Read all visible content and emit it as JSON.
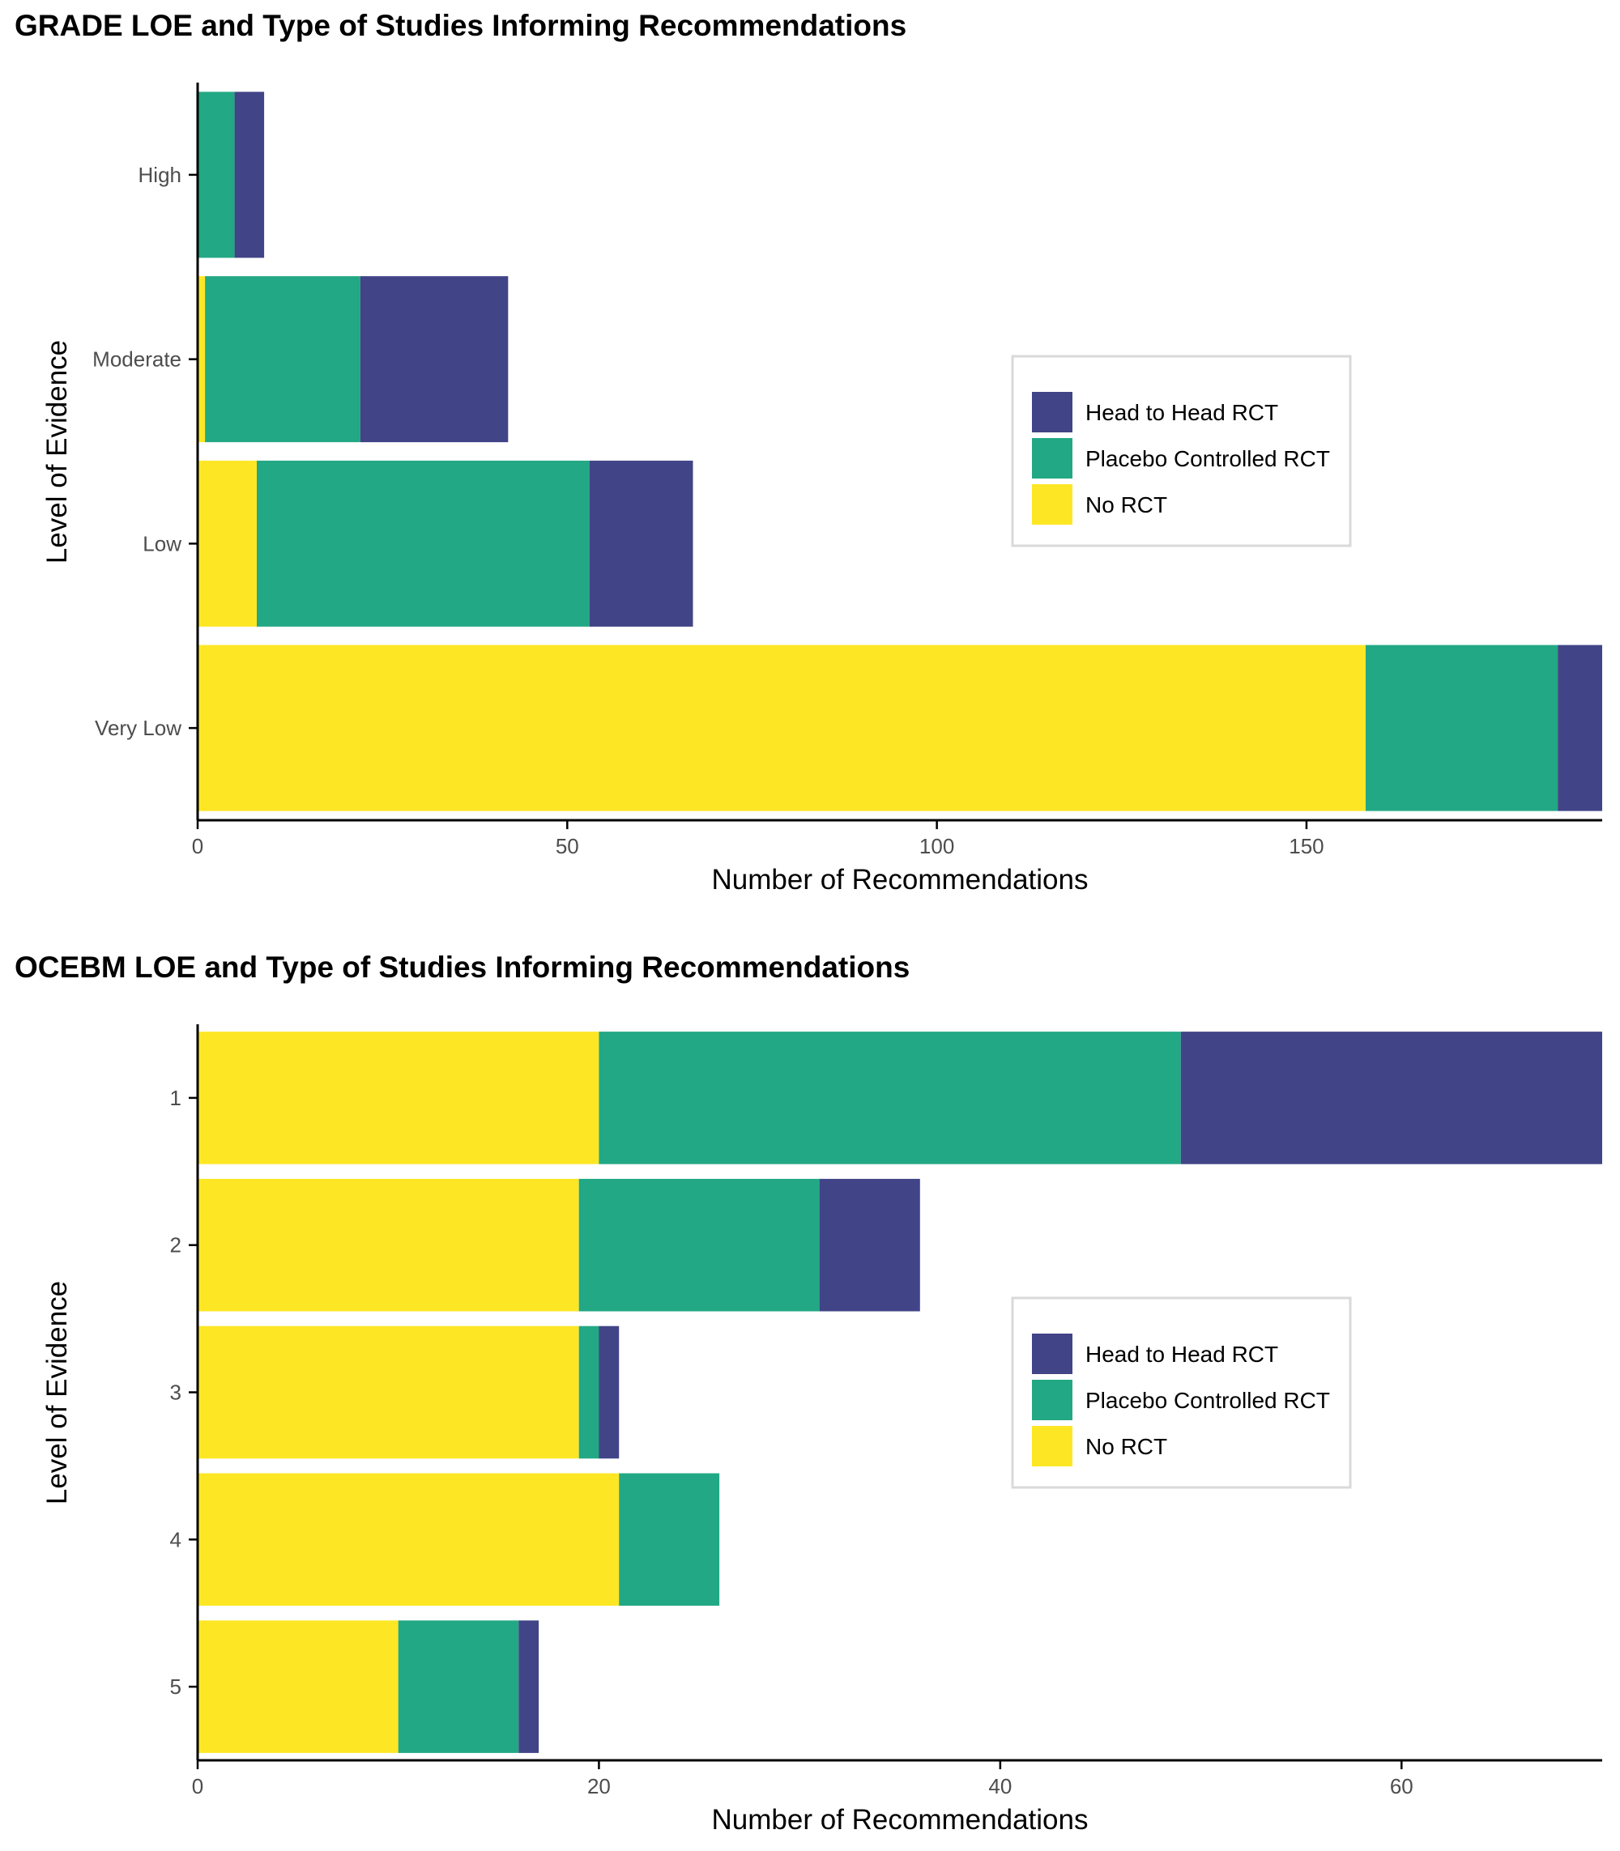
{
  "chart_data": [
    {
      "type": "bar",
      "orientation": "horizontal",
      "stacked": true,
      "title": "GRADE LOE and Type of Studies Informing Recommendations",
      "xlabel": "Number of Recommendations",
      "ylabel": "Level of Evidence",
      "xlim": [
        0,
        190
      ],
      "xticks": [
        0,
        50,
        100,
        150
      ],
      "categories": [
        "High",
        "Moderate",
        "Low",
        "Very Low"
      ],
      "series": [
        {
          "name": "No RCT",
          "color": "#FDE725",
          "values": [
            0,
            1,
            8,
            158
          ]
        },
        {
          "name": "Placebo Controlled RCT",
          "color": "#22A884",
          "values": [
            5,
            21,
            45,
            26
          ]
        },
        {
          "name": "Head to Head RCT",
          "color": "#414487",
          "values": [
            4,
            20,
            14,
            6
          ]
        }
      ],
      "legend": {
        "position": "right-center",
        "entries": [
          "Head to Head RCT",
          "Placebo Controlled RCT",
          "No RCT"
        ]
      }
    },
    {
      "type": "bar",
      "orientation": "horizontal",
      "stacked": true,
      "title": "OCEBM LOE and Type of Studies Informing Recommendations",
      "xlabel": "Number of Recommendations",
      "ylabel": "Level of Evidence",
      "xlim": [
        0,
        70
      ],
      "xticks": [
        0,
        20,
        40,
        60
      ],
      "categories": [
        "1",
        "2",
        "3",
        "4",
        "5"
      ],
      "series": [
        {
          "name": "No RCT",
          "color": "#FDE725",
          "values": [
            20,
            19,
            19,
            21,
            10
          ]
        },
        {
          "name": "Placebo Controlled RCT",
          "color": "#22A884",
          "values": [
            29,
            12,
            1,
            5,
            6
          ]
        },
        {
          "name": "Head to Head RCT",
          "color": "#414487",
          "values": [
            21,
            5,
            1,
            0,
            1
          ]
        }
      ],
      "legend": {
        "position": "right-center",
        "entries": [
          "Head to Head RCT",
          "Placebo Controlled RCT",
          "No RCT"
        ]
      }
    }
  ]
}
